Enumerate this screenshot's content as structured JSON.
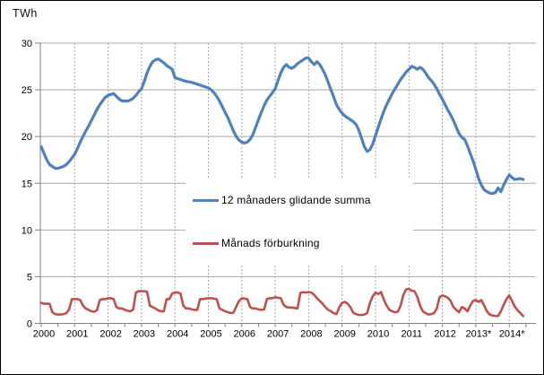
{
  "chart_data": {
    "type": "line",
    "title": "",
    "ylabel": "TWh",
    "xlabel": "",
    "ylim": [
      0,
      30
    ],
    "yticks": [
      0,
      5,
      10,
      15,
      20,
      25,
      30
    ],
    "x_interval": "monthly",
    "x_start": "2000-01",
    "x_end": "2014-06",
    "x_tick_labels": [
      "2000",
      "2001",
      "2002",
      "2003",
      "2004",
      "2005",
      "2006",
      "2007",
      "2008",
      "2009",
      "2010",
      "2011",
      "2012",
      "2013*",
      "2014*"
    ],
    "grid": {
      "horizontal": "solid",
      "vertical": "dashed-every-year"
    },
    "legend_position": "inside-center-left",
    "series": [
      {
        "name": "12 månaders glidande summa",
        "color": "#4F81BD",
        "stroke_width": 3.2,
        "values": [
          18.9,
          18.2,
          17.5,
          17.0,
          16.8,
          16.6,
          16.6,
          16.7,
          16.8,
          17.0,
          17.3,
          17.7,
          18.1,
          18.7,
          19.4,
          20.0,
          20.6,
          21.1,
          21.7,
          22.3,
          22.9,
          23.4,
          23.8,
          24.2,
          24.4,
          24.5,
          24.6,
          24.3,
          24.0,
          23.8,
          23.8,
          23.8,
          23.9,
          24.1,
          24.4,
          24.8,
          25.1,
          25.9,
          26.8,
          27.5,
          28.0,
          28.2,
          28.3,
          28.1,
          27.9,
          27.6,
          27.4,
          27.2,
          26.3,
          26.2,
          26.1,
          26.0,
          25.9,
          25.85,
          25.8,
          25.7,
          25.6,
          25.5,
          25.4,
          25.3,
          25.2,
          25.0,
          24.7,
          24.3,
          23.8,
          23.2,
          22.6,
          22.0,
          21.3,
          20.6,
          20.0,
          19.6,
          19.4,
          19.3,
          19.4,
          19.7,
          20.2,
          21.0,
          21.8,
          22.6,
          23.3,
          23.9,
          24.3,
          24.7,
          25.1,
          26.0,
          26.8,
          27.4,
          27.7,
          27.4,
          27.3,
          27.5,
          27.8,
          28.0,
          28.2,
          28.4,
          28.4,
          28.0,
          27.7,
          28.0,
          27.7,
          27.2,
          26.6,
          25.8,
          25.0,
          24.2,
          23.4,
          22.9,
          22.5,
          22.2,
          22.0,
          21.8,
          21.6,
          21.3,
          20.7,
          19.8,
          18.9,
          18.4,
          18.6,
          19.2,
          20.1,
          21.0,
          21.9,
          22.7,
          23.4,
          24.0,
          24.6,
          25.1,
          25.6,
          26.1,
          26.5,
          26.9,
          27.2,
          27.5,
          27.4,
          27.2,
          27.4,
          27.2,
          26.8,
          26.3,
          26.0,
          25.6,
          25.1,
          24.5,
          24.0,
          23.4,
          22.8,
          22.3,
          21.7,
          21.0,
          20.3,
          19.9,
          19.7,
          19.0,
          18.2,
          17.4,
          16.5,
          15.5,
          14.8,
          14.3,
          14.1,
          13.95,
          13.9,
          14.0,
          14.5,
          14.1,
          14.8,
          15.4,
          15.9,
          15.6,
          15.4,
          15.45,
          15.5,
          15.4
        ]
      },
      {
        "name": "Månads förburkning",
        "color": "#C0504D",
        "stroke_width": 2.6,
        "values": [
          2.2,
          2.1,
          2.1,
          2.1,
          1.2,
          1.0,
          0.95,
          0.95,
          1.0,
          1.1,
          1.5,
          2.6,
          2.6,
          2.6,
          2.5,
          1.9,
          1.6,
          1.45,
          1.3,
          1.25,
          1.4,
          2.5,
          2.6,
          2.6,
          2.7,
          2.7,
          2.6,
          1.75,
          1.6,
          1.6,
          1.45,
          1.35,
          1.3,
          1.5,
          3.3,
          3.45,
          3.45,
          3.45,
          3.4,
          1.9,
          1.75,
          1.6,
          1.4,
          1.3,
          1.3,
          2.6,
          2.6,
          3.2,
          3.3,
          3.3,
          3.2,
          1.9,
          1.6,
          1.6,
          1.5,
          1.45,
          1.45,
          2.6,
          2.6,
          2.65,
          2.7,
          2.7,
          2.65,
          2.6,
          1.6,
          1.45,
          1.3,
          1.2,
          1.1,
          1.15,
          1.8,
          2.4,
          2.7,
          2.65,
          2.6,
          1.75,
          1.6,
          1.6,
          1.5,
          1.45,
          1.5,
          2.6,
          2.7,
          2.7,
          2.8,
          2.75,
          2.7,
          2.0,
          1.75,
          1.7,
          1.7,
          1.65,
          1.6,
          3.25,
          3.35,
          3.3,
          3.35,
          3.3,
          3.05,
          2.7,
          2.4,
          2.1,
          1.75,
          1.45,
          1.3,
          1.1,
          1.0,
          1.75,
          2.2,
          2.3,
          2.1,
          1.75,
          1.15,
          1.0,
          0.9,
          0.9,
          0.95,
          1.1,
          2.2,
          2.9,
          3.3,
          3.15,
          3.35,
          2.55,
          1.9,
          1.45,
          1.3,
          1.2,
          1.25,
          1.9,
          3.05,
          3.65,
          3.7,
          3.5,
          3.45,
          2.85,
          1.9,
          1.3,
          1.1,
          0.95,
          1.0,
          1.1,
          1.6,
          2.8,
          3.0,
          2.9,
          2.75,
          2.4,
          1.75,
          1.45,
          1.2,
          1.75,
          1.6,
          1.3,
          1.9,
          2.4,
          2.5,
          2.3,
          2.5,
          1.9,
          1.3,
          0.95,
          0.85,
          0.8,
          0.8,
          1.3,
          2.0,
          2.6,
          3.0,
          2.4,
          1.8,
          1.4,
          1.1,
          0.8
        ]
      }
    ]
  },
  "colors": {
    "series_blue": "#4F81BD",
    "series_red": "#C0504D",
    "gridline": "#A8A8A8",
    "axis": "#808080",
    "text": "#000000",
    "background": "#FFFFFF"
  }
}
